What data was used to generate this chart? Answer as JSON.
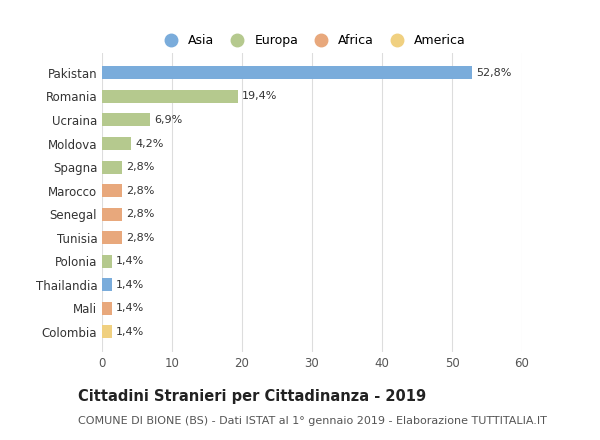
{
  "categories": [
    "Pakistan",
    "Romania",
    "Ucraina",
    "Moldova",
    "Spagna",
    "Marocco",
    "Senegal",
    "Tunisia",
    "Polonia",
    "Thailandia",
    "Mali",
    "Colombia"
  ],
  "values": [
    52.8,
    19.4,
    6.9,
    4.2,
    2.8,
    2.8,
    2.8,
    2.8,
    1.4,
    1.4,
    1.4,
    1.4
  ],
  "labels": [
    "52,8%",
    "19,4%",
    "6,9%",
    "4,2%",
    "2,8%",
    "2,8%",
    "2,8%",
    "2,8%",
    "1,4%",
    "1,4%",
    "1,4%",
    "1,4%"
  ],
  "continent": [
    "Asia",
    "Europa",
    "Europa",
    "Europa",
    "Europa",
    "Africa",
    "Africa",
    "Africa",
    "Europa",
    "Asia",
    "Africa",
    "America"
  ],
  "colors": {
    "Asia": "#7aacdb",
    "Europa": "#b5c98e",
    "Africa": "#e8a87c",
    "America": "#f0d080"
  },
  "xlim": [
    0,
    60
  ],
  "xticks": [
    0,
    10,
    20,
    30,
    40,
    50,
    60
  ],
  "title": "Cittadini Stranieri per Cittadinanza - 2019",
  "subtitle": "COMUNE DI BIONE (BS) - Dati ISTAT al 1° gennaio 2019 - Elaborazione TUTTITALIA.IT",
  "bg_color": "#ffffff",
  "grid_color": "#dddddd",
  "title_fontsize": 10.5,
  "subtitle_fontsize": 8,
  "label_fontsize": 8,
  "tick_fontsize": 8.5,
  "legend_fontsize": 9
}
